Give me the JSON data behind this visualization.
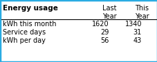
{
  "title": "Energy usage",
  "col_headers": [
    "Last\nYear",
    "This\nYear"
  ],
  "row_labels": [
    "kWh this month",
    "Service days",
    "kWh per day"
  ],
  "values": [
    [
      "1620",
      "1340"
    ],
    [
      "29",
      "31"
    ],
    [
      "56",
      "43"
    ]
  ],
  "background_color": "#ffffff",
  "border_color": "#29abe2",
  "title_fontsize": 7.5,
  "header_fontsize": 7,
  "data_fontsize": 7,
  "fig_width": 2.28,
  "fig_height": 0.9
}
